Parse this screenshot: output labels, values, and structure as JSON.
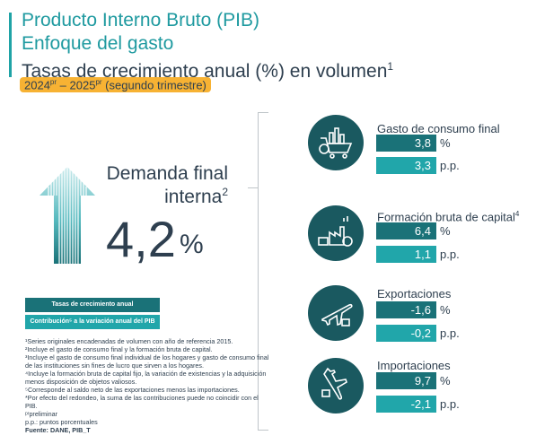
{
  "header": {
    "title_line1": "Producto Interno Bruto (PIB)",
    "title_line2": "Enfoque del gasto",
    "title_line3": "Tasas de crecimiento anual (%) en volumen",
    "title_line3_sup": "1",
    "period_a": "2024",
    "period_a_sup": "pr",
    "period_sep": " – ",
    "period_b": "2025",
    "period_b_sup": "pr",
    "period_suffix": " (segundo trimestre)",
    "accent_color": "#1f9aa0",
    "pill_color": "#f7b233"
  },
  "demanda": {
    "label_line1": "Demanda final",
    "label_line2": "interna",
    "label_sup": "2",
    "value": "4,2",
    "unit": "%"
  },
  "components": [
    {
      "title": "Gasto de consumo final",
      "sup": "",
      "growth": "3,8",
      "growth_unit": "%",
      "contribution": "3,3",
      "contribution_unit": "p.p.",
      "icon": "shopping-cart-icon"
    },
    {
      "title": "Formación bruta de capital",
      "sup": "4",
      "growth": "6,4",
      "growth_unit": "%",
      "contribution": "1,1",
      "contribution_unit": "p.p.",
      "icon": "factory-money-icon"
    },
    {
      "title": "Exportaciones",
      "sup": "",
      "growth": "-1,6",
      "growth_unit": "%",
      "contribution": "-0,2",
      "contribution_unit": "p.p.",
      "icon": "airplane-export-icon"
    },
    {
      "title": "Importaciones",
      "sup": "",
      "growth": "9,7",
      "growth_unit": "%",
      "contribution": "-2,1",
      "contribution_unit": "p.p.",
      "icon": "airplane-import-icon"
    }
  ],
  "legend": {
    "growth_label": "Tasas de crecimiento anual",
    "contribution_label": "Contribución⁵ a la variación anual del PIB",
    "growth_color": "#1a7278",
    "contribution_color": "#21a6aa"
  },
  "notes": [
    "¹Series originales encadenadas de volumen con año de referencia 2015.",
    "²Incluye el gasto de consumo final y la formación bruta de capital.",
    "³Incluye el gasto de consumo final individual de los hogares y gasto de consumo final de las instituciones sin fines de lucro que sirven a los hogares.",
    "⁴Incluye la formación bruta de capital fijo, la variación de existencias y la adquisición menos disposición de objetos valiosos.",
    "⁵Corresponde al saldo neto de las exportaciones menos las importaciones.",
    "*Por efecto del redondeo, la suma de las contribuciones puede no coincidir con el PIB.",
    "ᵖʳpreliminar",
    "p.p.: puntos porcentuales"
  ],
  "source": "Fuente: DANE, PIB_T"
}
